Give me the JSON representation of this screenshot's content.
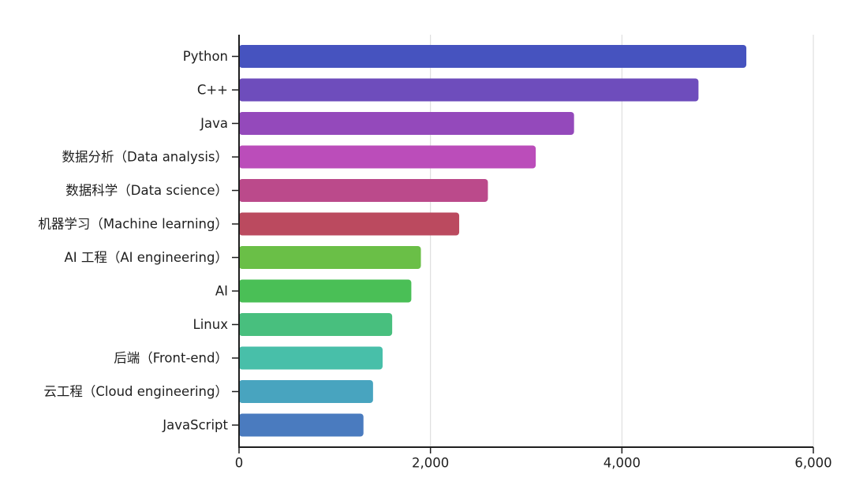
{
  "chart_data": {
    "type": "bar",
    "orientation": "horizontal",
    "title": "",
    "xlabel": "",
    "ylabel": "",
    "xlim": [
      0,
      6000
    ],
    "x_ticks": [
      0,
      2000,
      4000,
      6000
    ],
    "x_tick_labels": [
      "0",
      "2,000",
      "4,000",
      "6,000"
    ],
    "grid": "vertical",
    "categories": [
      "Python",
      "C++",
      "Java",
      "数据分析（Data analysis）",
      "数据科学（Data science）",
      "机器学习（Machine learning）",
      "AI 工程（AI engineering）",
      "AI",
      "Linux",
      "后端（Front-end）",
      "云工程（Cloud engineering）",
      "JavaScript"
    ],
    "values": [
      5300,
      4800,
      3500,
      3100,
      2600,
      2300,
      1900,
      1800,
      1600,
      1500,
      1400,
      1300
    ],
    "colors": [
      "#4653bf",
      "#6e4dbc",
      "#9449bb",
      "#bb4dba",
      "#bb4a8b",
      "#bb4a5f",
      "#6abf47",
      "#4abf56",
      "#48bf7e",
      "#48bfa9",
      "#48a4bf",
      "#4a7bbf"
    ],
    "grid_color": "#d9d9d9",
    "axis_color": "#1f1f1f"
  }
}
